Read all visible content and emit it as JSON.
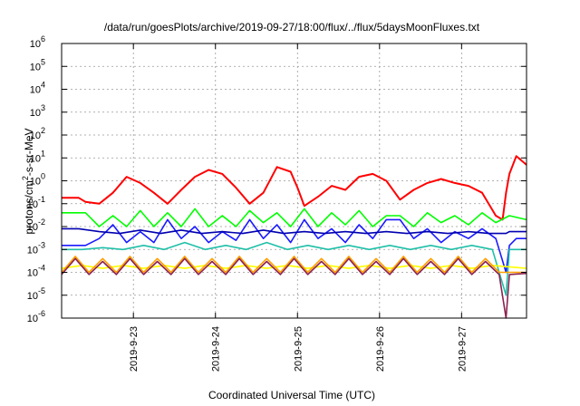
{
  "chart_data": {
    "type": "line",
    "title": "/data/run/goesPlots/archive/2019-09-27/18:00/flux/../flux/5daysMoonFluxes.txt",
    "xlabel": "Coordinated Universal Time (UTC)",
    "ylabel_parts": [
      "protons/cm",
      "2",
      "-s-sr-MeV"
    ],
    "y_scale": "log",
    "ylim": [
      1e-06,
      1000000.0
    ],
    "y_ticks": [
      {
        "base": "10",
        "exp": "-6",
        "value": 1e-06
      },
      {
        "base": "10",
        "exp": "-5",
        "value": 1e-05
      },
      {
        "base": "10",
        "exp": "-4",
        "value": 0.0001
      },
      {
        "base": "10",
        "exp": "-3",
        "value": 0.001
      },
      {
        "base": "10",
        "exp": "-2",
        "value": 0.01
      },
      {
        "base": "10",
        "exp": "-1",
        "value": 0.1
      },
      {
        "base": "10",
        "exp": "0",
        "value": 1
      },
      {
        "base": "10",
        "exp": "1",
        "value": 10
      },
      {
        "base": "10",
        "exp": "2",
        "value": 100
      },
      {
        "base": "10",
        "exp": "3",
        "value": 1000
      },
      {
        "base": "10",
        "exp": "4",
        "value": 10000
      },
      {
        "base": "10",
        "exp": "5",
        "value": 100000
      },
      {
        "base": "10",
        "exp": "6",
        "value": 1000000
      }
    ],
    "xlim": [
      "2019-09-22 03:00",
      "2019-09-27 19:00"
    ],
    "x_ticks": [
      "2019-9-23",
      "2019-9-24",
      "2019-9-25",
      "2019-9-26",
      "2019-9-27"
    ],
    "grid": true,
    "series": [
      {
        "color": "#ff0000",
        "x": [
          "2019-09-22 03:00",
          "2019-09-22 08:00",
          "2019-09-22 10:00",
          "2019-09-22 14:00",
          "2019-09-22 18:00",
          "2019-09-22 22:00",
          "2019-09-23 02:00",
          "2019-09-23 06:00",
          "2019-09-23 10:00",
          "2019-09-23 14:00",
          "2019-09-23 18:00",
          "2019-09-23 22:00",
          "2019-09-24 02:00",
          "2019-09-24 06:00",
          "2019-09-24 10:00",
          "2019-09-24 14:00",
          "2019-09-24 18:00",
          "2019-09-24 22:00",
          "2019-09-25 00:00",
          "2019-09-25 02:00",
          "2019-09-25 06:00",
          "2019-09-25 10:00",
          "2019-09-25 14:00",
          "2019-09-25 18:00",
          "2019-09-25 22:00",
          "2019-09-26 02:00",
          "2019-09-26 06:00",
          "2019-09-26 10:00",
          "2019-09-26 14:00",
          "2019-09-26 18:00",
          "2019-09-26 22:00",
          "2019-09-27 02:00",
          "2019-09-27 06:00",
          "2019-09-27 10:00",
          "2019-09-27 12:00",
          "2019-09-27 13:00",
          "2019-09-27 14:00",
          "2019-09-27 16:00",
          "2019-09-27 19:00"
        ],
        "values": [
          0.18,
          0.18,
          0.12,
          0.1,
          0.3,
          1.5,
          0.8,
          0.3,
          0.1,
          0.4,
          1.5,
          3,
          2,
          0.5,
          0.1,
          0.3,
          4,
          2.5,
          0.5,
          0.08,
          0.2,
          0.6,
          0.4,
          1.5,
          2,
          1,
          0.15,
          0.4,
          0.8,
          1.2,
          0.8,
          0.6,
          0.3,
          0.03,
          0.02,
          0.3,
          2,
          12,
          5
        ]
      },
      {
        "color": "#00ff00",
        "x": [
          "2019-09-22 03:00",
          "2019-09-22 06:00",
          "2019-09-22 10:00",
          "2019-09-22 14:00",
          "2019-09-22 18:00",
          "2019-09-22 22:00",
          "2019-09-23 02:00",
          "2019-09-23 06:00",
          "2019-09-23 10:00",
          "2019-09-23 14:00",
          "2019-09-23 18:00",
          "2019-09-23 22:00",
          "2019-09-24 02:00",
          "2019-09-24 06:00",
          "2019-09-24 10:00",
          "2019-09-24 14:00",
          "2019-09-24 18:00",
          "2019-09-24 22:00",
          "2019-09-25 02:00",
          "2019-09-25 06:00",
          "2019-09-25 10:00",
          "2019-09-25 14:00",
          "2019-09-25 18:00",
          "2019-09-25 22:00",
          "2019-09-26 02:00",
          "2019-09-26 06:00",
          "2019-09-26 10:00",
          "2019-09-26 14:00",
          "2019-09-26 18:00",
          "2019-09-26 22:00",
          "2019-09-27 02:00",
          "2019-09-27 06:00",
          "2019-09-27 10:00",
          "2019-09-27 14:00",
          "2019-09-27 19:00"
        ],
        "values": [
          0.04,
          0.04,
          0.04,
          0.01,
          0.03,
          0.01,
          0.05,
          0.01,
          0.04,
          0.01,
          0.06,
          0.01,
          0.03,
          0.01,
          0.05,
          0.015,
          0.04,
          0.01,
          0.06,
          0.01,
          0.04,
          0.012,
          0.05,
          0.01,
          0.03,
          0.03,
          0.01,
          0.04,
          0.015,
          0.03,
          0.012,
          0.04,
          0.015,
          0.03,
          0.02
        ]
      },
      {
        "color": "#1a1aff",
        "x": [
          "2019-09-22 03:00",
          "2019-09-22 08:00",
          "2019-09-22 10:00",
          "2019-09-22 14:00",
          "2019-09-22 18:00",
          "2019-09-22 22:00",
          "2019-09-23 02:00",
          "2019-09-23 06:00",
          "2019-09-23 10:00",
          "2019-09-23 14:00",
          "2019-09-23 18:00",
          "2019-09-23 22:00",
          "2019-09-24 02:00",
          "2019-09-24 06:00",
          "2019-09-24 10:00",
          "2019-09-24 14:00",
          "2019-09-24 18:00",
          "2019-09-24 22:00",
          "2019-09-25 02:00",
          "2019-09-25 06:00",
          "2019-09-25 10:00",
          "2019-09-25 14:00",
          "2019-09-25 18:00",
          "2019-09-25 22:00",
          "2019-09-26 02:00",
          "2019-09-26 06:00",
          "2019-09-26 10:00",
          "2019-09-26 14:00",
          "2019-09-26 18:00",
          "2019-09-26 22:00",
          "2019-09-27 02:00",
          "2019-09-27 06:00",
          "2019-09-27 10:00",
          "2019-09-27 13:00",
          "2019-09-27 14:00",
          "2019-09-27 16:00",
          "2019-09-27 19:00"
        ],
        "values": [
          0.0015,
          0.0015,
          0.0015,
          0.003,
          0.012,
          0.002,
          0.006,
          0.002,
          0.02,
          0.003,
          0.01,
          0.002,
          0.006,
          0.0025,
          0.02,
          0.003,
          0.012,
          0.002,
          0.02,
          0.003,
          0.008,
          0.002,
          0.012,
          0.003,
          0.02,
          0.02,
          0.003,
          0.008,
          0.002,
          0.006,
          0.003,
          0.008,
          0.003,
          0.0001,
          0.0015,
          0.003,
          0.003
        ]
      },
      {
        "color": "#0000b0",
        "x": [
          "2019-09-22 03:00",
          "2019-09-22 08:00",
          "2019-09-22 14:00",
          "2019-09-22 20:00",
          "2019-09-23 02:00",
          "2019-09-23 08:00",
          "2019-09-23 14:00",
          "2019-09-23 20:00",
          "2019-09-24 02:00",
          "2019-09-24 08:00",
          "2019-09-24 14:00",
          "2019-09-24 20:00",
          "2019-09-25 02:00",
          "2019-09-25 08:00",
          "2019-09-25 14:00",
          "2019-09-25 20:00",
          "2019-09-26 02:00",
          "2019-09-26 08:00",
          "2019-09-26 14:00",
          "2019-09-26 20:00",
          "2019-09-27 02:00",
          "2019-09-27 08:00",
          "2019-09-27 13:00",
          "2019-09-27 14:00",
          "2019-09-27 19:00"
        ],
        "values": [
          0.008,
          0.008,
          0.006,
          0.005,
          0.007,
          0.005,
          0.007,
          0.005,
          0.006,
          0.005,
          0.007,
          0.005,
          0.006,
          0.005,
          0.006,
          0.005,
          0.006,
          0.005,
          0.006,
          0.005,
          0.006,
          0.005,
          0.005,
          0.006,
          0.006
        ]
      },
      {
        "color": "#1fbfa8",
        "x": [
          "2019-09-22 03:00",
          "2019-09-22 09:00",
          "2019-09-22 15:00",
          "2019-09-22 21:00",
          "2019-09-23 03:00",
          "2019-09-23 09:00",
          "2019-09-23 15:00",
          "2019-09-23 21:00",
          "2019-09-24 03:00",
          "2019-09-24 09:00",
          "2019-09-24 15:00",
          "2019-09-24 21:00",
          "2019-09-25 03:00",
          "2019-09-25 09:00",
          "2019-09-25 15:00",
          "2019-09-25 21:00",
          "2019-09-26 03:00",
          "2019-09-26 09:00",
          "2019-09-26 15:00",
          "2019-09-26 21:00",
          "2019-09-27 03:00",
          "2019-09-27 09:00",
          "2019-09-27 13:00",
          "2019-09-27 14:00",
          "2019-09-27 19:00"
        ],
        "values": [
          0.001,
          0.001,
          0.0012,
          0.001,
          0.0015,
          0.001,
          0.002,
          0.001,
          0.0015,
          0.001,
          0.002,
          0.001,
          0.0015,
          0.001,
          0.0015,
          0.001,
          0.0015,
          0.001,
          0.0015,
          0.001,
          0.0015,
          0.001,
          1e-05,
          0.001,
          0.001
        ]
      },
      {
        "color": "#ffff00",
        "x": [
          "2019-09-22 03:00",
          "2019-09-22 09:00",
          "2019-09-22 15:00",
          "2019-09-22 21:00",
          "2019-09-23 03:00",
          "2019-09-23 09:00",
          "2019-09-23 15:00",
          "2019-09-23 21:00",
          "2019-09-24 03:00",
          "2019-09-24 09:00",
          "2019-09-24 15:00",
          "2019-09-24 21:00",
          "2019-09-25 03:00",
          "2019-09-25 09:00",
          "2019-09-25 15:00",
          "2019-09-25 21:00",
          "2019-09-26 03:00",
          "2019-09-26 09:00",
          "2019-09-26 15:00",
          "2019-09-26 21:00",
          "2019-09-27 03:00",
          "2019-09-27 09:00",
          "2019-09-27 19:00"
        ],
        "values": [
          0.00015,
          0.0002,
          0.00015,
          0.0002,
          0.00015,
          0.0002,
          0.00015,
          0.0002,
          0.00015,
          0.0002,
          0.00015,
          0.0002,
          0.00015,
          0.0002,
          0.00015,
          0.0002,
          0.00015,
          0.0002,
          0.00015,
          0.0002,
          0.00015,
          0.0002,
          0.00015
        ]
      },
      {
        "color": "#ffa000",
        "x": [
          "2019-09-22 03:00",
          "2019-09-22 07:00",
          "2019-09-22 11:00",
          "2019-09-22 15:00",
          "2019-09-22 19:00",
          "2019-09-22 23:00",
          "2019-09-23 03:00",
          "2019-09-23 07:00",
          "2019-09-23 11:00",
          "2019-09-23 15:00",
          "2019-09-23 19:00",
          "2019-09-23 23:00",
          "2019-09-24 03:00",
          "2019-09-24 07:00",
          "2019-09-24 11:00",
          "2019-09-24 15:00",
          "2019-09-24 19:00",
          "2019-09-24 23:00",
          "2019-09-25 03:00",
          "2019-09-25 07:00",
          "2019-09-25 11:00",
          "2019-09-25 15:00",
          "2019-09-25 19:00",
          "2019-09-25 23:00",
          "2019-09-26 03:00",
          "2019-09-26 07:00",
          "2019-09-26 11:00",
          "2019-09-26 15:00",
          "2019-09-26 19:00",
          "2019-09-26 23:00",
          "2019-09-27 03:00",
          "2019-09-27 07:00",
          "2019-09-27 11:00",
          "2019-09-27 19:00"
        ],
        "values": [
          0.0001,
          0.0005,
          0.0001,
          0.0004,
          0.0001,
          0.0005,
          0.0001,
          0.0004,
          0.0001,
          0.0005,
          0.0001,
          0.0004,
          0.0001,
          0.0005,
          0.0001,
          0.0004,
          0.0001,
          0.0005,
          0.0001,
          0.0004,
          0.0001,
          0.0005,
          0.0001,
          0.0004,
          0.0001,
          0.0005,
          0.0001,
          0.0004,
          0.0001,
          0.0005,
          0.0001,
          0.0004,
          0.0001,
          0.0001
        ]
      },
      {
        "color": "#8b2252",
        "x": [
          "2019-09-22 03:00",
          "2019-09-22 07:00",
          "2019-09-22 11:00",
          "2019-09-22 15:00",
          "2019-09-22 19:00",
          "2019-09-22 23:00",
          "2019-09-23 03:00",
          "2019-09-23 07:00",
          "2019-09-23 11:00",
          "2019-09-23 15:00",
          "2019-09-23 19:00",
          "2019-09-23 23:00",
          "2019-09-24 03:00",
          "2019-09-24 07:00",
          "2019-09-24 11:00",
          "2019-09-24 15:00",
          "2019-09-24 19:00",
          "2019-09-24 23:00",
          "2019-09-25 03:00",
          "2019-09-25 07:00",
          "2019-09-25 11:00",
          "2019-09-25 15:00",
          "2019-09-25 19:00",
          "2019-09-25 23:00",
          "2019-09-26 03:00",
          "2019-09-26 07:00",
          "2019-09-26 11:00",
          "2019-09-26 15:00",
          "2019-09-26 19:00",
          "2019-09-26 23:00",
          "2019-09-27 03:00",
          "2019-09-27 07:00",
          "2019-09-27 11:00",
          "2019-09-27 13:00",
          "2019-09-27 14:00",
          "2019-09-27 19:00"
        ],
        "values": [
          8e-05,
          0.0004,
          8e-05,
          0.0003,
          8e-05,
          0.0004,
          8e-05,
          0.0003,
          8e-05,
          0.0004,
          8e-05,
          0.0003,
          8e-05,
          0.0004,
          8e-05,
          0.0003,
          8e-05,
          0.0004,
          8e-05,
          0.0003,
          8e-05,
          0.0004,
          8e-05,
          0.0003,
          8e-05,
          0.0004,
          8e-05,
          0.0003,
          8e-05,
          0.0004,
          8e-05,
          0.0003,
          8e-05,
          1e-06,
          8e-05,
          9e-05
        ]
      }
    ]
  }
}
